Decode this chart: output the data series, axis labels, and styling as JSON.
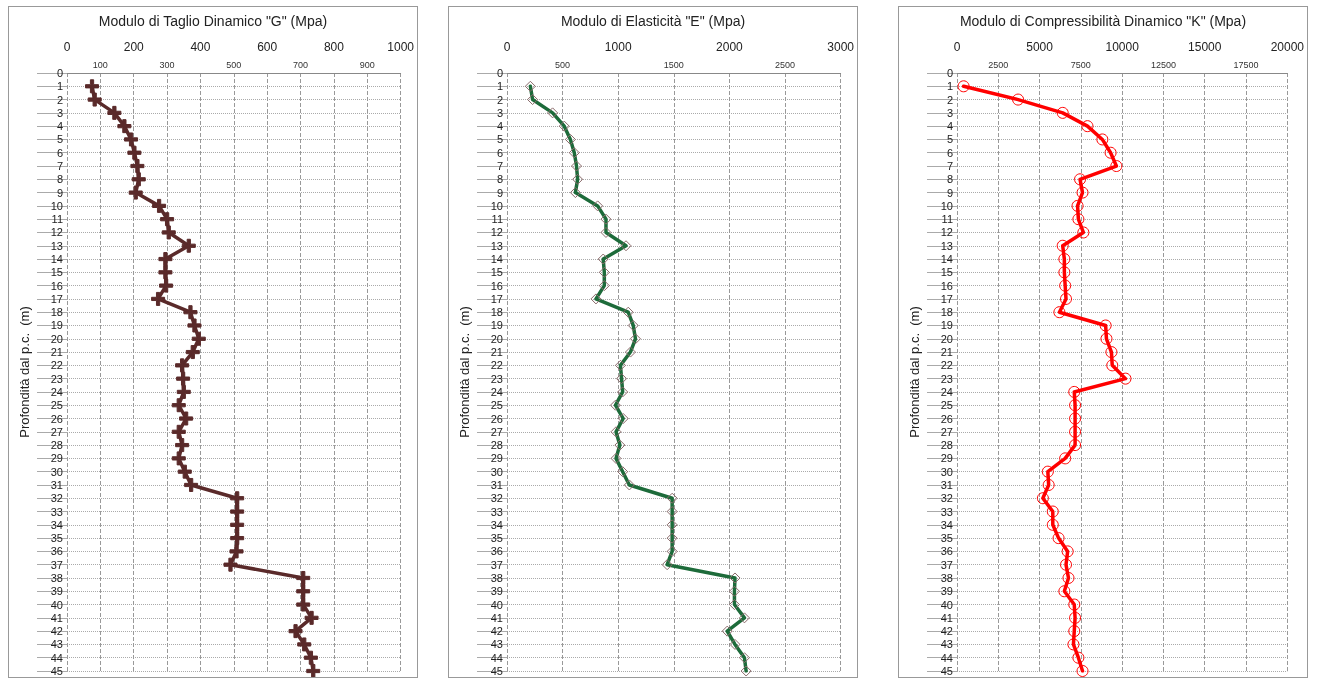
{
  "chart_data": [
    {
      "type": "line",
      "title": "Modulo di Taglio Dinamico \"G\" (Mpa)",
      "ylabel": "Profondità dal p.c.  (m)",
      "marker": "cross",
      "grid": true,
      "xlim": [
        0,
        1000
      ],
      "xticks": [
        0,
        200,
        400,
        600,
        800,
        1000
      ],
      "x2lim": [
        0,
        1000
      ],
      "x2ticks": [
        100,
        300,
        500,
        700,
        900
      ],
      "ylim": [
        45,
        0
      ],
      "yticks": [
        0,
        1,
        2,
        3,
        4,
        5,
        6,
        7,
        8,
        9,
        10,
        11,
        12,
        13,
        14,
        15,
        16,
        17,
        18,
        19,
        20,
        21,
        22,
        23,
        24,
        25,
        26,
        27,
        28,
        29,
        30,
        31,
        32,
        33,
        34,
        35,
        36,
        37,
        38,
        39,
        40,
        41,
        42,
        43,
        44,
        45
      ],
      "series": [
        {
          "color": "#5a2a2a",
          "x": [
            75,
            83,
            142,
            172,
            192,
            202,
            211,
            215,
            206,
            276,
            300,
            305,
            365,
            295,
            295,
            297,
            273,
            370,
            382,
            395,
            377,
            345,
            348,
            350,
            335,
            357,
            335,
            345,
            335,
            353,
            372,
            510,
            510,
            510,
            510,
            508,
            490,
            708,
            708,
            708,
            733,
            685,
            711,
            731,
            738
          ],
          "values": [
            1,
            2,
            3,
            4,
            5,
            6,
            7,
            8,
            9,
            10,
            11,
            12,
            13,
            14,
            15,
            16,
            17,
            18,
            19,
            20,
            21,
            22,
            23,
            24,
            25,
            26,
            27,
            28,
            29,
            30,
            31,
            32,
            33,
            34,
            35,
            36,
            37,
            38,
            39,
            40,
            41,
            42,
            43,
            44,
            45
          ]
        }
      ]
    },
    {
      "type": "line",
      "title": "Modulo di Elasticità \"E\" (Mpa)",
      "ylabel": "Profondità dal p.c.  (m)",
      "marker": "diamond",
      "grid": true,
      "xlim": [
        0,
        3000
      ],
      "xticks": [
        0,
        1000,
        2000,
        3000
      ],
      "x2lim": [
        0,
        3000
      ],
      "x2ticks": [
        500,
        1500,
        2500
      ],
      "ylim": [
        45,
        0
      ],
      "yticks": [
        0,
        1,
        2,
        3,
        4,
        5,
        6,
        7,
        8,
        9,
        10,
        11,
        12,
        13,
        14,
        15,
        16,
        17,
        18,
        19,
        20,
        21,
        22,
        23,
        24,
        25,
        26,
        27,
        28,
        29,
        30,
        31,
        32,
        33,
        34,
        35,
        36,
        37,
        38,
        39,
        40,
        41,
        42,
        43,
        44,
        45
      ],
      "series": [
        {
          "color": "#1d6b3a",
          "x": [
            210,
            230,
            410,
            515,
            570,
            605,
            625,
            635,
            615,
            815,
            890,
            890,
            1070,
            865,
            875,
            875,
            800,
            1090,
            1135,
            1155,
            1110,
            1020,
            1030,
            1040,
            975,
            1045,
            980,
            1015,
            980,
            1040,
            1100,
            1485,
            1485,
            1485,
            1485,
            1485,
            1440,
            2050,
            2045,
            2045,
            2135,
            1980,
            2050,
            2135,
            2150
          ],
          "values": [
            1,
            2,
            3,
            4,
            5,
            6,
            7,
            8,
            9,
            10,
            11,
            12,
            13,
            14,
            15,
            16,
            17,
            18,
            19,
            20,
            21,
            22,
            23,
            24,
            25,
            26,
            27,
            28,
            29,
            30,
            31,
            32,
            33,
            34,
            35,
            36,
            37,
            38,
            39,
            40,
            41,
            42,
            43,
            44,
            45
          ]
        }
      ]
    },
    {
      "type": "line",
      "title": "Modulo di Compressibilità Dinamico \"K\" (Mpa)",
      "ylabel": "Profondità dal p.c.  (m)",
      "marker": "circle",
      "grid": true,
      "xlim": [
        0,
        20000
      ],
      "xticks": [
        0,
        5000,
        10000,
        15000,
        20000
      ],
      "x2lim": [
        0,
        20000
      ],
      "x2ticks": [
        2500,
        7500,
        12500,
        17500
      ],
      "ylim": [
        45,
        0
      ],
      "yticks": [
        0,
        1,
        2,
        3,
        4,
        5,
        6,
        7,
        8,
        9,
        10,
        11,
        12,
        13,
        14,
        15,
        16,
        17,
        18,
        19,
        20,
        21,
        22,
        23,
        24,
        25,
        26,
        27,
        28,
        29,
        30,
        31,
        32,
        33,
        34,
        35,
        36,
        37,
        38,
        39,
        40,
        41,
        42,
        43,
        44,
        45
      ],
      "series": [
        {
          "color": "#ff0000",
          "x": [
            400,
            3700,
            6400,
            7900,
            8800,
            9300,
            9650,
            7450,
            7600,
            7300,
            7350,
            7650,
            6400,
            6500,
            6500,
            6550,
            6600,
            6200,
            9000,
            9050,
            9350,
            9400,
            10200,
            7100,
            7150,
            7150,
            7150,
            7150,
            6550,
            5500,
            5550,
            5200,
            5800,
            5800,
            6150,
            6700,
            6600,
            6750,
            6500,
            7100,
            7150,
            7100,
            7050,
            7350,
            7600
          ],
          "values": [
            1,
            2,
            3,
            4,
            5,
            6,
            7,
            8,
            9,
            10,
            11,
            12,
            13,
            14,
            15,
            16,
            17,
            18,
            19,
            20,
            21,
            22,
            23,
            24,
            25,
            26,
            27,
            28,
            29,
            30,
            31,
            32,
            33,
            34,
            35,
            36,
            37,
            38,
            39,
            40,
            41,
            42,
            43,
            44,
            45
          ]
        }
      ]
    }
  ]
}
